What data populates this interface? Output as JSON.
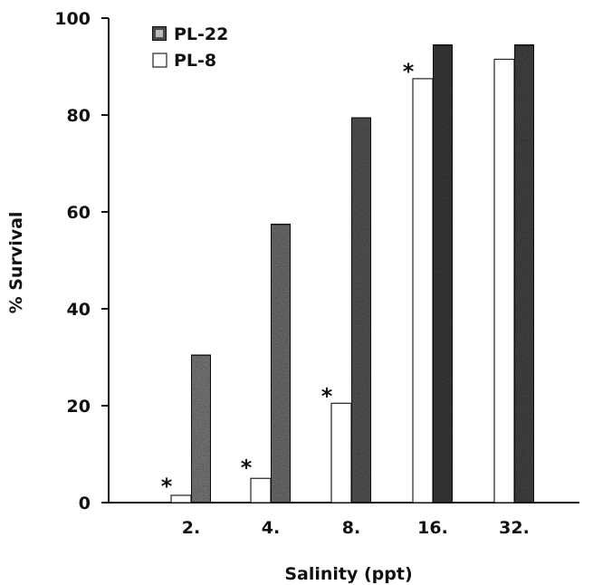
{
  "chart_data": {
    "type": "bar",
    "xlabel": "Salinity (ppt)",
    "ylabel": "% Survival",
    "ylim": [
      0,
      100
    ],
    "yticks": [
      "0",
      "20",
      "40",
      "60",
      "80",
      "100"
    ],
    "categories": [
      "2.",
      "4.",
      "8.",
      "16.",
      "32."
    ],
    "series": [
      {
        "name": "PL-8",
        "values": [
          1.5,
          5,
          20.5,
          87.5,
          91.5
        ],
        "color": "#ffffff"
      },
      {
        "name": "PL-22",
        "values": [
          30.5,
          57.5,
          79.5,
          94.5,
          94.5
        ],
        "color": "#333333"
      }
    ],
    "significance_marker": "*",
    "significant_categories": [
      "2.",
      "4.",
      "8.",
      "16."
    ],
    "legend": {
      "position": "top-left"
    },
    "grid": false
  }
}
